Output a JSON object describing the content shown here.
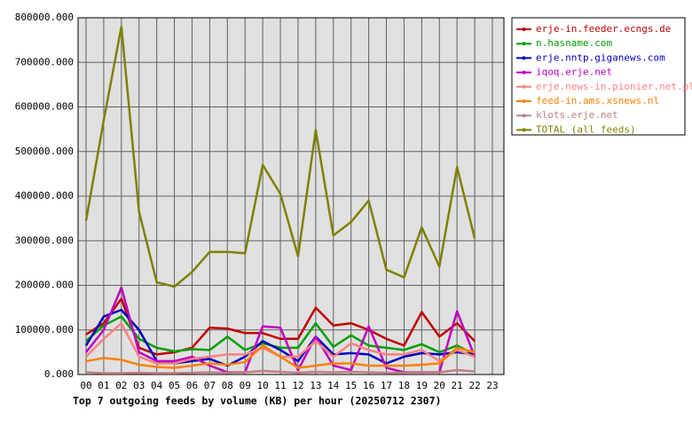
{
  "chart_data": {
    "type": "line",
    "title": "Top 7 outgoing feeds by volume (KB) per hour (20250712 2307)",
    "categories": [
      "00",
      "01",
      "02",
      "03",
      "04",
      "05",
      "06",
      "07",
      "08",
      "09",
      "10",
      "11",
      "12",
      "13",
      "14",
      "15",
      "16",
      "17",
      "18",
      "19",
      "20",
      "21",
      "22",
      "23"
    ],
    "ylim": [
      0,
      800000
    ],
    "yticks": [
      {
        "value": 0,
        "label": "0.000"
      },
      {
        "value": 100000,
        "label": "100000.000"
      },
      {
        "value": 200000,
        "label": "200000.000"
      },
      {
        "value": 300000,
        "label": "300000.000"
      },
      {
        "value": 400000,
        "label": "400000.000"
      },
      {
        "value": 500000,
        "label": "500000.000"
      },
      {
        "value": 600000,
        "label": "600000.000"
      },
      {
        "value": 700000,
        "label": "700000.000"
      },
      {
        "value": 800000,
        "label": "800000.000"
      }
    ],
    "grid": true,
    "legend": "right",
    "series": [
      {
        "name": "erje-in.feeder.ecngs.de",
        "color": "#c00000",
        "values": [
          90000,
          115000,
          170000,
          60000,
          45000,
          50000,
          60000,
          105000,
          103000,
          93000,
          93000,
          80000,
          80000,
          150000,
          110000,
          115000,
          100000,
          80000,
          65000,
          140000,
          85000,
          115000,
          75000,
          null
        ]
      },
      {
        "name": "n.hasname.com",
        "color": "#00a000",
        "values": [
          75000,
          110000,
          130000,
          80000,
          60000,
          52000,
          57000,
          55000,
          85000,
          55000,
          70000,
          60000,
          60000,
          115000,
          62000,
          88000,
          65000,
          60000,
          55000,
          68000,
          50000,
          65000,
          45000,
          null
        ]
      },
      {
        "name": "erje.nntp.giganews.com",
        "color": "#0000c0",
        "values": [
          65000,
          130000,
          145000,
          100000,
          30000,
          25000,
          30000,
          35000,
          20000,
          40000,
          75000,
          55000,
          30000,
          85000,
          45000,
          48000,
          45000,
          25000,
          40000,
          48000,
          45000,
          50000,
          45000,
          null
        ]
      },
      {
        "name": "iqoq.erje.net",
        "color": "#c000c0",
        "values": [
          50000,
          100000,
          195000,
          50000,
          30000,
          30000,
          40000,
          20000,
          5000,
          5000,
          108000,
          105000,
          10000,
          85000,
          20000,
          10000,
          108000,
          15000,
          5000,
          5000,
          5000,
          142000,
          40000,
          null
        ]
      },
      {
        "name": "erje.news-in.pionier.net.pl",
        "color": "#ff8080",
        "values": [
          40000,
          80000,
          115000,
          40000,
          25000,
          25000,
          35000,
          40000,
          45000,
          45000,
          60000,
          40000,
          40000,
          75000,
          40000,
          70000,
          55000,
          45000,
          45000,
          55000,
          30000,
          55000,
          40000,
          null
        ]
      },
      {
        "name": "feed-in.ams.xsnews.nl",
        "color": "#ff8000",
        "values": [
          30000,
          37000,
          33000,
          22000,
          17000,
          15000,
          20000,
          25000,
          22000,
          28000,
          65000,
          40000,
          15000,
          20000,
          25000,
          25000,
          20000,
          20000,
          20000,
          22000,
          25000,
          60000,
          50000,
          null
        ]
      },
      {
        "name": "klots.erje.net",
        "color": "#c08080",
        "values": [
          5000,
          3000,
          3000,
          4000,
          3000,
          3000,
          4000,
          5000,
          4000,
          5000,
          8000,
          6000,
          4000,
          6000,
          5000,
          6000,
          5000,
          4000,
          4000,
          5000,
          5000,
          10000,
          7000,
          null
        ]
      },
      {
        "name": "TOTAL (all feeds)",
        "color": "#808000",
        "values": [
          345000,
          570000,
          780000,
          365000,
          207000,
          197000,
          230000,
          275000,
          275000,
          272000,
          470000,
          405000,
          265000,
          548000,
          312000,
          342000,
          390000,
          235000,
          218000,
          330000,
          242000,
          465000,
          305000,
          null
        ]
      }
    ]
  }
}
